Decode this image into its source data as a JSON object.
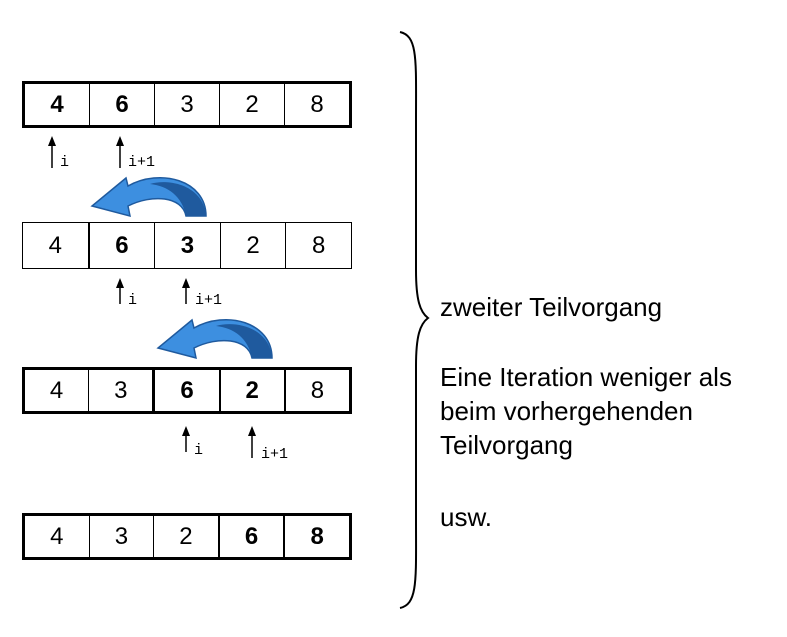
{
  "rows": [
    {
      "cells": [
        {
          "value": "4",
          "bold": true
        },
        {
          "value": "6",
          "bold": true
        },
        {
          "value": "3",
          "bold": false
        },
        {
          "value": "2",
          "bold": false
        },
        {
          "value": "8",
          "bold": false
        }
      ]
    },
    {
      "cells": [
        {
          "value": "4",
          "bold": false
        },
        {
          "value": "6",
          "bold": true
        },
        {
          "value": "3",
          "bold": true
        },
        {
          "value": "2",
          "bold": false
        },
        {
          "value": "8",
          "bold": false
        }
      ]
    },
    {
      "cells": [
        {
          "value": "4",
          "bold": false
        },
        {
          "value": "3",
          "bold": false
        },
        {
          "value": "6",
          "bold": true
        },
        {
          "value": "2",
          "bold": true
        },
        {
          "value": "8",
          "bold": false
        }
      ]
    },
    {
      "cells": [
        {
          "value": "4",
          "bold": false
        },
        {
          "value": "3",
          "bold": false
        },
        {
          "value": "2",
          "bold": false
        },
        {
          "value": "6",
          "bold": true
        },
        {
          "value": "8",
          "bold": true
        }
      ]
    }
  ],
  "pointers": {
    "i": "i",
    "i_plus_1": "i+1"
  },
  "swap_arrow_color": "#3d8fe0",
  "swap_arrow_dark": "#1f5a9e",
  "text": {
    "heading": "zweiter Teilvorgang",
    "description_1": "Eine Iteration weniger als",
    "description_2": "beim vorhergehenden",
    "description_3": "Teilvorgang",
    "etc": "usw."
  }
}
